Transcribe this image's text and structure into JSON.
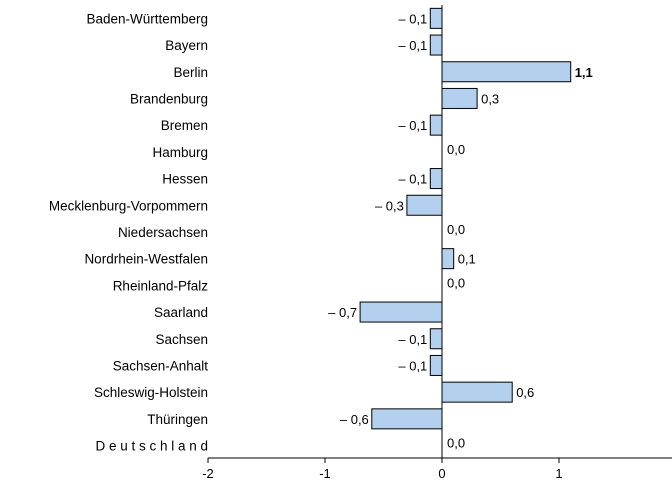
{
  "chart_data": {
    "type": "bar",
    "orientation": "horizontal",
    "categories": [
      "Baden-Württemberg",
      "Bayern",
      "Berlin",
      "Brandenburg",
      "Bremen",
      "Hamburg",
      "Hessen",
      "Mecklenburg-Vorpommern",
      "Niedersachsen",
      "Nordrhein-Westfalen",
      "Rheinland-Pfalz",
      "Saarland",
      "Sachsen",
      "Sachsen-Anhalt",
      "Schleswig-Holstein",
      "Thüringen",
      "D e u t s c h l a n d"
    ],
    "values": [
      -0.1,
      -0.1,
      1.1,
      0.3,
      -0.1,
      0.0,
      -0.1,
      -0.3,
      0.0,
      0.1,
      0.0,
      -0.7,
      -0.1,
      -0.1,
      0.6,
      -0.6,
      0.0
    ],
    "value_labels": [
      "– 0,1",
      "– 0,1",
      "1,1",
      "0,3",
      "– 0,1",
      "0,0",
      "– 0,1",
      "– 0,3",
      "0,0",
      "0,1",
      "0,0",
      "– 0,7",
      "– 0,1",
      "– 0,1",
      "0,6",
      "– 0,6",
      "0,0"
    ],
    "bold_labels": [
      2
    ],
    "xlim": [
      -2,
      2
    ],
    "xticks": [
      -2,
      -1,
      0,
      1
    ],
    "xtick_labels": [
      "-2",
      "-1",
      "0",
      "1"
    ],
    "bar_color": "#b3d1ef",
    "bar_edge_color": "#000000",
    "grid": false,
    "legend": "none",
    "title": "",
    "xlabel": "",
    "ylabel": ""
  }
}
